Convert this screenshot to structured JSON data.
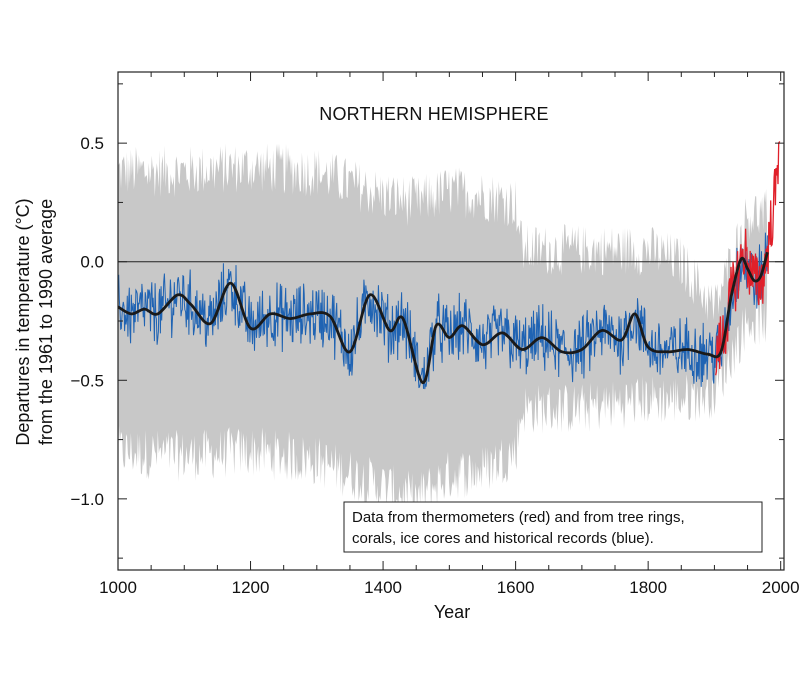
{
  "chart_data": {
    "type": "line",
    "title": "NORTHERN HEMISPHERE",
    "xlabel": "Year",
    "ylabel_line1": "Departures in temperature (°C)",
    "ylabel_line2": "from the 1961 to 1990 average",
    "xlim": [
      1000,
      2005
    ],
    "ylim": [
      -1.3,
      0.8
    ],
    "x_ticks": [
      1000,
      1200,
      1400,
      1600,
      1800,
      2000
    ],
    "y_ticks": [
      0.5,
      0.0,
      -0.5,
      -1.0
    ],
    "y_tick_labels": [
      "0.5",
      "0.0",
      "−0.5",
      "−1.0"
    ],
    "zero_line": 0.0,
    "grid": false,
    "legend": {
      "placement": "bottom-right",
      "line1": "Data from thermometers (red) and from tree rings,",
      "line2": "corals, ice cores and historical records (blue)."
    },
    "colors": {
      "uncertainty": "#c8c8c8",
      "proxy": "#1f63b3",
      "instrumental": "#e0202a",
      "smoothed": "#1a1a1a"
    },
    "series": [
      {
        "name": "smoothed",
        "x": [
          1000,
          1020,
          1040,
          1060,
          1090,
          1110,
          1140,
          1170,
          1200,
          1230,
          1260,
          1290,
          1320,
          1350,
          1380,
          1410,
          1430,
          1460,
          1480,
          1500,
          1520,
          1550,
          1580,
          1610,
          1640,
          1670,
          1700,
          1730,
          1760,
          1780,
          1800,
          1830,
          1860,
          1890,
          1910,
          1925,
          1940,
          1950,
          1960,
          1970,
          1980
        ],
        "y": [
          -0.19,
          -0.22,
          -0.2,
          -0.22,
          -0.14,
          -0.18,
          -0.26,
          -0.09,
          -0.28,
          -0.22,
          -0.24,
          -0.22,
          -0.23,
          -0.38,
          -0.14,
          -0.29,
          -0.24,
          -0.51,
          -0.27,
          -0.32,
          -0.27,
          -0.35,
          -0.3,
          -0.37,
          -0.32,
          -0.38,
          -0.37,
          -0.29,
          -0.33,
          -0.22,
          -0.36,
          -0.38,
          -0.37,
          -0.39,
          -0.38,
          -0.15,
          0.01,
          -0.03,
          -0.08,
          -0.06,
          0.04
        ]
      },
      {
        "name": "proxy",
        "x_range": [
          1000,
          1980
        ],
        "note": "annual reconstruction, same course as smoothed with variability about ±0.12"
      },
      {
        "name": "instrumental",
        "x_range": [
          1902,
          1999
        ],
        "x": [
          1902,
          1915,
          1925,
          1935,
          1945,
          1955,
          1965,
          1975,
          1985,
          1990,
          1995,
          1998
        ],
        "y": [
          -0.4,
          -0.3,
          -0.15,
          -0.05,
          0.05,
          -0.05,
          -0.1,
          -0.05,
          0.15,
          0.25,
          0.35,
          0.6
        ]
      },
      {
        "name": "uncertainty",
        "x": [
          1000,
          1100,
          1200,
          1300,
          1400,
          1450,
          1500,
          1550,
          1600,
          1610,
          1700,
          1800,
          1850,
          1900,
          1950,
          1980
        ],
        "upper": [
          0.38,
          0.38,
          0.4,
          0.38,
          0.28,
          0.25,
          0.3,
          0.28,
          0.25,
          0.05,
          0.05,
          0.05,
          0.0,
          -0.2,
          0.2,
          0.2
        ],
        "lower": [
          -0.8,
          -0.82,
          -0.8,
          -0.84,
          -0.95,
          -1.0,
          -0.9,
          -0.88,
          -0.8,
          -0.62,
          -0.62,
          -0.58,
          -0.58,
          -0.55,
          -0.25,
          -0.25
        ]
      }
    ]
  }
}
